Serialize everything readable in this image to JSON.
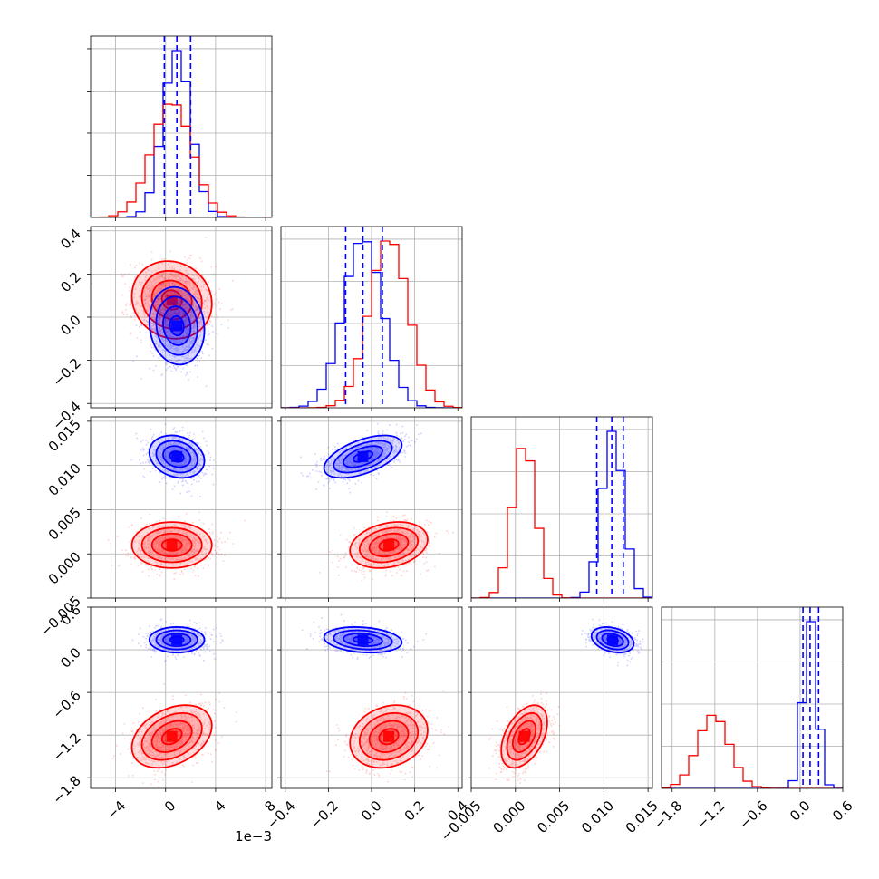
{
  "chart_data": {
    "type": "corner",
    "parameters": 4,
    "axes": [
      {
        "range": [
          -0.006,
          0.0085
        ],
        "ticks": [
          -0.004,
          0,
          0.004,
          0.008
        ],
        "tick_labels": [
          "−4",
          "0",
          "4",
          "8"
        ],
        "offset_text": "1e−3"
      },
      {
        "range": [
          -0.42,
          0.42
        ],
        "ticks": [
          -0.4,
          -0.2,
          0.0,
          0.2,
          0.4
        ],
        "tick_labels": [
          "−0.4",
          "−0.2",
          "0.0",
          "0.2",
          "0.4"
        ]
      },
      {
        "range": [
          -0.005,
          0.0155
        ],
        "ticks": [
          -0.005,
          0.0,
          0.005,
          0.01,
          0.015
        ],
        "tick_labels": [
          "−0.005",
          "0.000",
          "0.005",
          "0.010",
          "0.015"
        ]
      },
      {
        "range": [
          -1.95,
          0.6
        ],
        "ticks": [
          -1.8,
          -1.2,
          -0.6,
          0.0,
          0.6
        ],
        "tick_labels": [
          "−1.8",
          "−1.2",
          "−0.6",
          "0.0",
          "0.6"
        ]
      }
    ],
    "series": [
      {
        "color": "#ff0000",
        "mean": [
          0.0005,
          0.08,
          0.001,
          -1.22
        ],
        "std": [
          0.0016,
          0.09,
          0.0013,
          0.22
        ],
        "corr": {
          "0-1": -0.1,
          "0-2": 0.0,
          "0-3": 0.35,
          "1-2": 0.25,
          "1-3": 0.2,
          "2-3": 0.45
        }
      },
      {
        "color": "#0000ff",
        "mean": [
          0.0009,
          -0.04,
          0.011,
          0.14
        ],
        "std": [
          0.0011,
          0.09,
          0.0012,
          0.09
        ],
        "corr": {
          "0-1": -0.1,
          "0-2": -0.2,
          "0-3": 0.0,
          "1-2": 0.55,
          "1-3": -0.2,
          "2-3": -0.3
        }
      }
    ],
    "quantile_lines": {
      "color": "#0000ff",
      "style": "dashed",
      "values": [
        [
          -0.0001,
          0.0009,
          0.002
        ],
        [
          -0.12,
          -0.04,
          0.05
        ],
        [
          0.0092,
          0.0109,
          0.0122
        ],
        [
          0.04,
          0.14,
          0.26
        ]
      ]
    },
    "grid": true
  }
}
